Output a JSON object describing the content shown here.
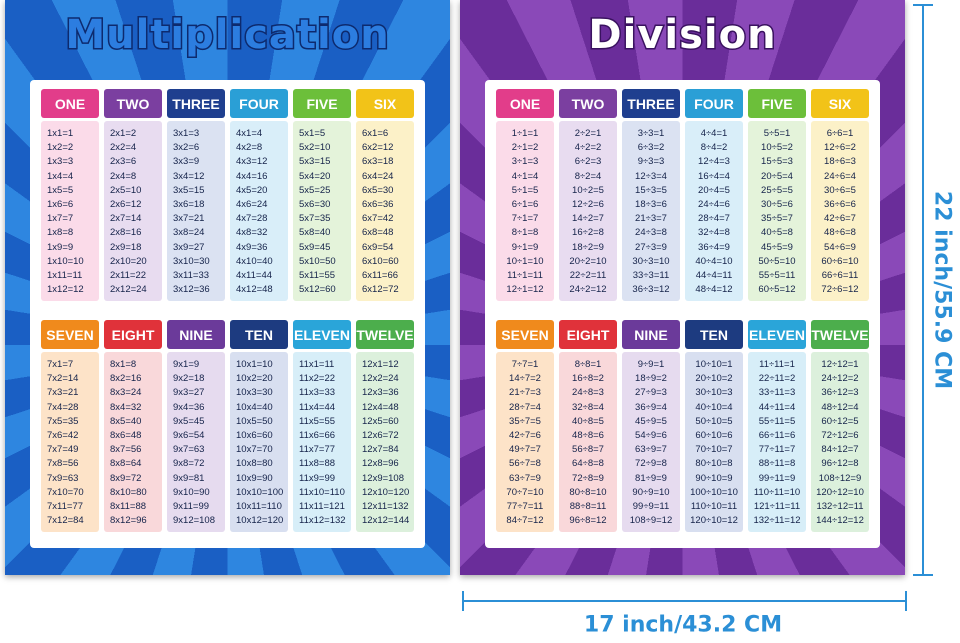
{
  "posters": [
    {
      "title": "Multiplication",
      "groups": [
        {
          "header": "ONE",
          "rows": [
            "1x1=1",
            "1x2=2",
            "1x3=3",
            "1x4=4",
            "1x5=5",
            "1x6=6",
            "1x7=7",
            "1x8=8",
            "1x9=9",
            "1x10=10",
            "1x11=11",
            "1x12=12"
          ]
        },
        {
          "header": "TWO",
          "rows": [
            "2x1=2",
            "2x2=4",
            "2x3=6",
            "2x4=8",
            "2x5=10",
            "2x6=12",
            "2x7=14",
            "2x8=16",
            "2x9=18",
            "2x10=20",
            "2x11=22",
            "2x12=24"
          ]
        },
        {
          "header": "THREE",
          "rows": [
            "3x1=3",
            "3x2=6",
            "3x3=9",
            "3x4=12",
            "3x5=15",
            "3x6=18",
            "3x7=21",
            "3x8=24",
            "3x9=27",
            "3x10=30",
            "3x11=33",
            "3x12=36"
          ]
        },
        {
          "header": "FOUR",
          "rows": [
            "4x1=4",
            "4x2=8",
            "4x3=12",
            "4x4=16",
            "4x5=20",
            "4x6=24",
            "4x7=28",
            "4x8=32",
            "4x9=36",
            "4x10=40",
            "4x11=44",
            "4x12=48"
          ]
        },
        {
          "header": "FIVE",
          "rows": [
            "5x1=5",
            "5x2=10",
            "5x3=15",
            "5x4=20",
            "5x5=25",
            "5x6=30",
            "5x7=35",
            "5x8=40",
            "5x9=45",
            "5x10=50",
            "5x11=55",
            "5x12=60"
          ]
        },
        {
          "header": "SIX",
          "rows": [
            "6x1=6",
            "6x2=12",
            "6x3=18",
            "6x4=24",
            "6x5=30",
            "6x6=36",
            "6x7=42",
            "6x8=48",
            "6x9=54",
            "6x10=60",
            "6x11=66",
            "6x12=72"
          ]
        },
        {
          "header": "SEVEN",
          "rows": [
            "7x1=7",
            "7x2=14",
            "7x3=21",
            "7x4=28",
            "7x5=35",
            "7x6=42",
            "7x7=49",
            "7x8=56",
            "7x9=63",
            "7x10=70",
            "7x11=77",
            "7x12=84"
          ]
        },
        {
          "header": "EIGHT",
          "rows": [
            "8x1=8",
            "8x2=16",
            "8x3=24",
            "8x4=32",
            "8x5=40",
            "8x6=48",
            "8x7=56",
            "8x8=64",
            "8x9=72",
            "8x10=80",
            "8x11=88",
            "8x12=96"
          ]
        },
        {
          "header": "NINE",
          "rows": [
            "9x1=9",
            "9x2=18",
            "9x3=27",
            "9x4=36",
            "9x5=45",
            "9x6=54",
            "9x7=63",
            "9x8=72",
            "9x9=81",
            "9x10=90",
            "9x11=99",
            "9x12=108"
          ]
        },
        {
          "header": "TEN",
          "rows": [
            "10x1=10",
            "10x2=20",
            "10x3=30",
            "10x4=40",
            "10x5=50",
            "10x6=60",
            "10x7=70",
            "10x8=80",
            "10x9=90",
            "10x10=100",
            "10x11=110",
            "10x12=120"
          ]
        },
        {
          "header": "ELEVEN",
          "rows": [
            "11x1=11",
            "11x2=22",
            "11x3=33",
            "11x4=44",
            "11x5=55",
            "11x6=66",
            "11x7=77",
            "11x8=88",
            "11x9=99",
            "11x10=110",
            "11x11=121",
            "11x12=132"
          ]
        },
        {
          "header": "TWELVE",
          "rows": [
            "12x1=12",
            "12x2=24",
            "12x3=36",
            "12x4=48",
            "12x5=60",
            "12x6=72",
            "12x7=84",
            "12x8=96",
            "12x9=108",
            "12x10=120",
            "12x11=132",
            "12x12=144"
          ]
        }
      ]
    },
    {
      "title": "Division",
      "groups": [
        {
          "header": "ONE",
          "rows": [
            "1÷1=1",
            "2÷1=2",
            "3÷1=3",
            "4÷1=4",
            "5÷1=5",
            "6÷1=6",
            "7÷1=7",
            "8÷1=8",
            "9÷1=9",
            "10÷1=10",
            "11÷1=11",
            "12÷1=12"
          ]
        },
        {
          "header": "TWO",
          "rows": [
            "2÷2=1",
            "4÷2=2",
            "6÷2=3",
            "8÷2=4",
            "10÷2=5",
            "12÷2=6",
            "14÷2=7",
            "16÷2=8",
            "18÷2=9",
            "20÷2=10",
            "22÷2=11",
            "24÷2=12"
          ]
        },
        {
          "header": "THREE",
          "rows": [
            "3÷3=1",
            "6÷3=2",
            "9÷3=3",
            "12÷3=4",
            "15÷3=5",
            "18÷3=6",
            "21÷3=7",
            "24÷3=8",
            "27÷3=9",
            "30÷3=10",
            "33÷3=11",
            "36÷3=12"
          ]
        },
        {
          "header": "FOUR",
          "rows": [
            "4÷4=1",
            "8÷4=2",
            "12÷4=3",
            "16÷4=4",
            "20÷4=5",
            "24÷4=6",
            "28÷4=7",
            "32÷4=8",
            "36÷4=9",
            "40÷4=10",
            "44÷4=11",
            "48÷4=12"
          ]
        },
        {
          "header": "FIVE",
          "rows": [
            "5÷5=1",
            "10÷5=2",
            "15÷5=3",
            "20÷5=4",
            "25÷5=5",
            "30÷5=6",
            "35÷5=7",
            "40÷5=8",
            "45÷5=9",
            "50÷5=10",
            "55÷5=11",
            "60÷5=12"
          ]
        },
        {
          "header": "SIX",
          "rows": [
            "6÷6=1",
            "12÷6=2",
            "18÷6=3",
            "24÷6=4",
            "30÷6=5",
            "36÷6=6",
            "42÷6=7",
            "48÷6=8",
            "54÷6=9",
            "60÷6=10",
            "66÷6=11",
            "72÷6=12"
          ]
        },
        {
          "header": "SEVEN",
          "rows": [
            "7÷7=1",
            "14÷7=2",
            "21÷7=3",
            "28÷7=4",
            "35÷7=5",
            "42÷7=6",
            "49÷7=7",
            "56÷7=8",
            "63÷7=9",
            "70÷7=10",
            "77÷7=11",
            "84÷7=12"
          ]
        },
        {
          "header": "EIGHT",
          "rows": [
            "8÷8=1",
            "16÷8=2",
            "24÷8=3",
            "32÷8=4",
            "40÷8=5",
            "48÷8=6",
            "56÷8=7",
            "64÷8=8",
            "72÷8=9",
            "80÷8=10",
            "88÷8=11",
            "96÷8=12"
          ]
        },
        {
          "header": "NINE",
          "rows": [
            "9÷9=1",
            "18÷9=2",
            "27÷9=3",
            "36÷9=4",
            "45÷9=5",
            "54÷9=6",
            "63÷9=7",
            "72÷9=8",
            "81÷9=9",
            "90÷9=10",
            "99÷9=11",
            "108÷9=12"
          ]
        },
        {
          "header": "TEN",
          "rows": [
            "10÷10=1",
            "20÷10=2",
            "30÷10=3",
            "40÷10=4",
            "50÷10=5",
            "60÷10=6",
            "70÷10=7",
            "80÷10=8",
            "90÷10=9",
            "100÷10=10",
            "110÷10=11",
            "120÷10=12"
          ]
        },
        {
          "header": "ELEVEN",
          "rows": [
            "11÷11=1",
            "22÷11=2",
            "33÷11=3",
            "44÷11=4",
            "55÷11=5",
            "66÷11=6",
            "77÷11=7",
            "88÷11=8",
            "99÷11=9",
            "110÷11=10",
            "121÷11=11",
            "132÷11=12"
          ]
        },
        {
          "header": "TWELVE",
          "rows": [
            "12÷12=1",
            "24÷12=2",
            "36÷12=3",
            "48÷12=4",
            "60÷12=5",
            "72÷12=6",
            "84÷12=7",
            "96÷12=8",
            "108÷12=9",
            "120÷12=10",
            "132÷12=11",
            "144÷12=12"
          ]
        }
      ]
    }
  ],
  "dimensions": {
    "height": "22 inch/55.9 CM",
    "width": "17 inch/43.2 CM"
  }
}
